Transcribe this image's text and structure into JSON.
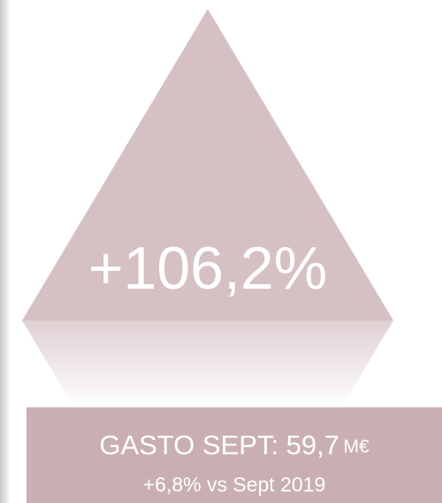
{
  "triangle": {
    "label": "+106,2%"
  },
  "summary": {
    "title": "GASTO SEPT: 59,7",
    "unit": "M€",
    "comparison": "+6,8% vs Sept 2019"
  }
}
